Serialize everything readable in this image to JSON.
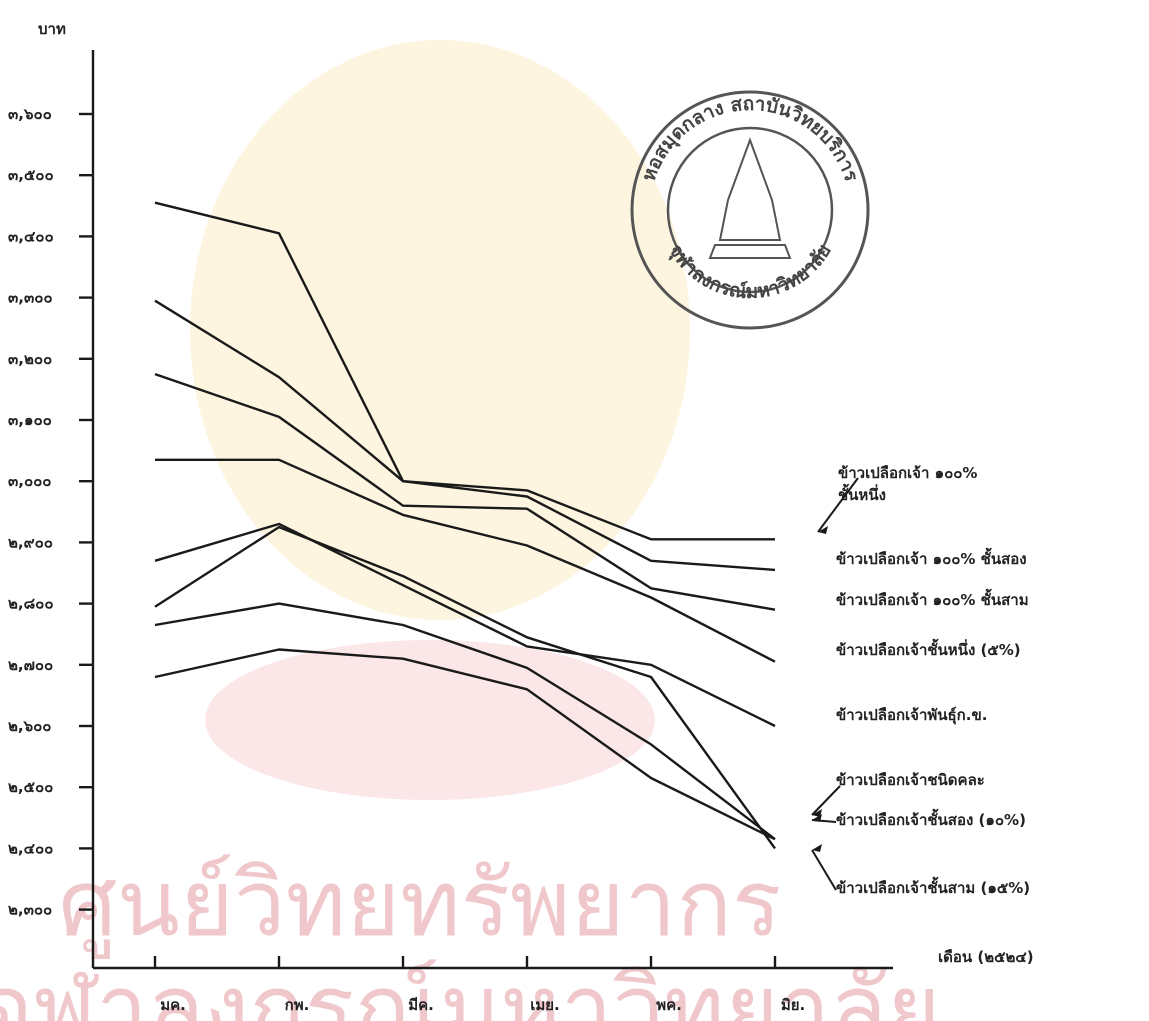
{
  "y_unit_label": "บาท",
  "x_axis_title": "เดือน (๒๕๒๔)",
  "watermark": {
    "line1": "ศูนย์วิทยทรัพยากร",
    "line2": "จุฬาลงกรณ์มหาวิทยาลัย"
  },
  "stamp": {
    "top_text": "หอสมุดกลาง สถาบันวิทยบริการ",
    "bottom_text": "จุฬาลงกรณ์มหาวิทยาลัย"
  },
  "chart_data": {
    "type": "line",
    "categories": [
      "มค.",
      "กพ.",
      "มีค.",
      "เมย.",
      "พค.",
      "มิย."
    ],
    "ylim": [
      2250,
      3650
    ],
    "yticks": [
      2300,
      2400,
      2500,
      2600,
      2700,
      2800,
      2900,
      3000,
      3100,
      3200,
      3300,
      3400,
      3500,
      3600
    ],
    "ytick_labels": [
      "๒,๓๐๐",
      "๒,๔๐๐",
      "๒,๕๐๐",
      "๒,๖๐๐",
      "๒,๗๐๐",
      "๒,๘๐๐",
      "๒,๙๐๐",
      "๓,๐๐๐",
      "๓,๑๐๐",
      "๓,๒๐๐",
      "๓,๓๐๐",
      "๓,๔๐๐",
      "๓,๕๐๐",
      "๓,๖๐๐"
    ],
    "grid": false,
    "series": [
      {
        "name": "ข้าวเปลือกเจ้า ๑๐๐% ชั้นหนึ่ง",
        "x": [
          0.5,
          1.5,
          2.5,
          3.5,
          4.5,
          5.5
        ],
        "values": [
          3455,
          3405,
          3000,
          2985,
          2905,
          2905
        ]
      },
      {
        "name": "ข้าวเปลือกเจ้า ๑๐๐% ชั้นสอง",
        "x": [
          0.5,
          1.5,
          2.5,
          3.5,
          4.5,
          5.5
        ],
        "values": [
          3295,
          3170,
          3000,
          2975,
          2870,
          2855
        ]
      },
      {
        "name": "ข้าวเปลือกเจ้า ๑๐๐% ชั้นสาม",
        "x": [
          0.5,
          1.5,
          2.5,
          3.5,
          4.5,
          5.5
        ],
        "values": [
          3175,
          3105,
          2960,
          2955,
          2825,
          2790
        ]
      },
      {
        "name": "ข้าวเปลือกเจ้าชั้นหนึ่ง (๕%)",
        "x": [
          0.5,
          1.5,
          2.5,
          3.5,
          4.5,
          5.5
        ],
        "values": [
          3035,
          3035,
          2945,
          2895,
          2810,
          2705
        ]
      },
      {
        "name": "ข้าวเปลือกเจ้าพันธุ์ก.ข.",
        "x": [
          0.5,
          1.5,
          2.5,
          3.5,
          4.5,
          5.5
        ],
        "values": [
          2870,
          2930,
          2830,
          2730,
          2700,
          2600
        ]
      },
      {
        "name": "ข้าวเปลือกเจ้าชนิดคละ",
        "x": [
          0.5,
          1.5,
          2.5,
          3.5,
          4.5,
          5.5
        ],
        "values": [
          2795,
          2925,
          2845,
          2745,
          2680,
          2400
        ]
      },
      {
        "name": "ข้าวเปลือกเจ้าชั้นสอง (๑๐%)",
        "x": [
          0.5,
          1.5,
          2.5,
          3.5,
          4.5,
          5.5
        ],
        "values": [
          2765,
          2800,
          2765,
          2695,
          2570,
          2415
        ]
      },
      {
        "name": "ข้าวเปลือกเจ้าชั้นสาม (๑๕%)",
        "x": [
          0.5,
          1.5,
          2.5,
          3.5,
          4.5,
          5.5
        ],
        "values": [
          2680,
          2725,
          2710,
          2660,
          2515,
          2415
        ]
      }
    ]
  }
}
